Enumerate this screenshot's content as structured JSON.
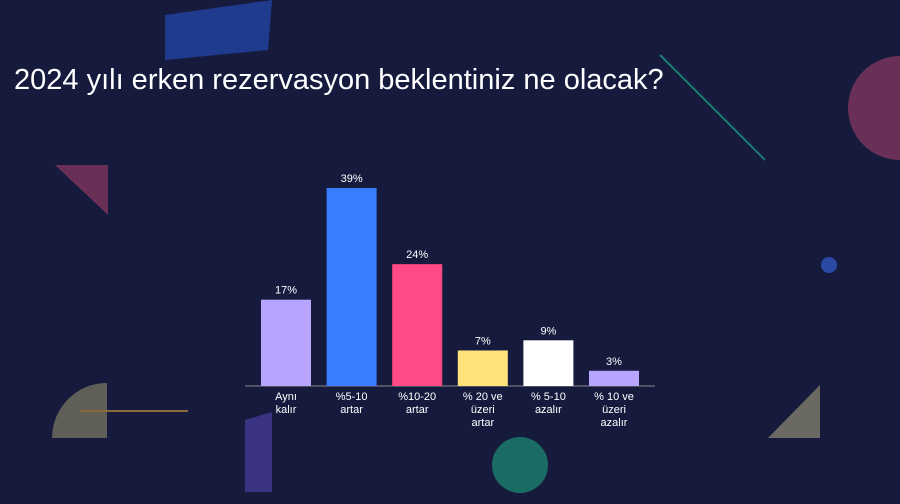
{
  "chart_data": {
    "type": "bar",
    "title": "2024 yılı erken rezervasyon beklentiniz ne olacak?",
    "categories": [
      "Aynı kalır",
      "%5-10 artar",
      "%10-20 artar",
      "% 20 ve üzeri artar",
      "% 5-10 azalır",
      "% 10 ve üzeri azalır"
    ],
    "values": [
      17,
      39,
      24,
      7,
      9,
      3
    ],
    "value_labels": [
      "17%",
      "39%",
      "24%",
      "7%",
      "9%",
      "3%"
    ],
    "colors": [
      "#b7a4ff",
      "#3b7dff",
      "#ff4a86",
      "#ffe27a",
      "#ffffff",
      "#b7a4ff"
    ]
  }
}
